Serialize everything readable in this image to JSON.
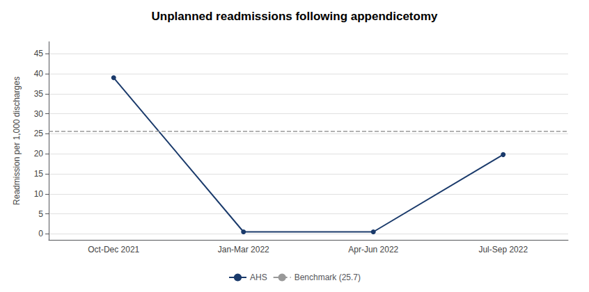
{
  "chart_data": {
    "type": "line",
    "title": "Unplanned readmissions following appendicetomy",
    "ylabel": "Readmission per 1,000 discharges",
    "categories": [
      "Oct-Dec 2021",
      "Jan-Mar 2022",
      "Apr-Jun 2022",
      "Jul-Sep 2022"
    ],
    "series": [
      {
        "name": "AHS",
        "type": "line",
        "color": "#1a3a6b",
        "marker": "circle",
        "line_style": "solid",
        "values": [
          39.0,
          0.5,
          0.5,
          19.8
        ]
      },
      {
        "name": "Benchmark (25.7)",
        "type": "hline",
        "color": "#999999",
        "line_style": "dashed",
        "value": 25.7
      }
    ],
    "ylim": [
      -1.5,
      48
    ],
    "yticks": [
      0,
      5,
      10,
      15,
      20,
      25,
      30,
      35,
      40,
      45
    ],
    "grid": true,
    "legend": "bottom"
  }
}
